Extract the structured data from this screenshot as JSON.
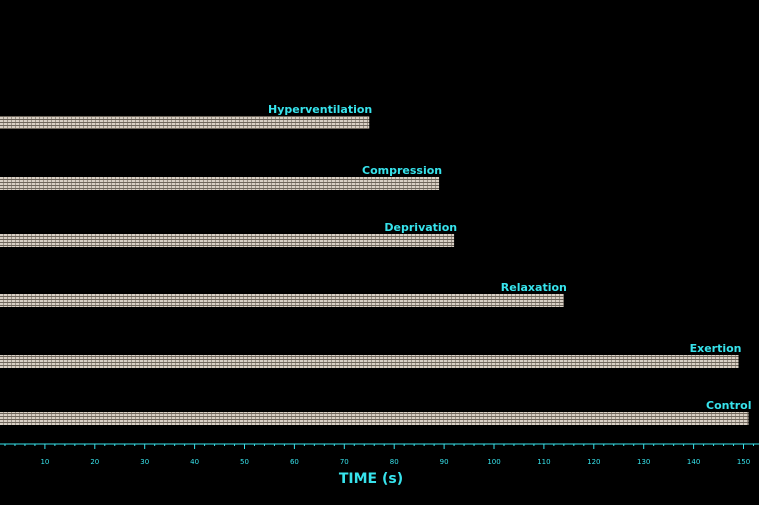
{
  "chart_data": {
    "type": "bar",
    "orientation": "horizontal",
    "categories": [
      "Hyperventilation",
      "Compression",
      "Deprivation",
      "Relaxation",
      "Exertion",
      "Control"
    ],
    "values": [
      75,
      89,
      92,
      114,
      149,
      151
    ],
    "xlabel": "TIME (s)",
    "xlim": [
      0,
      152
    ],
    "xticks": [
      10,
      20,
      30,
      40,
      50,
      60,
      70,
      80,
      90,
      100,
      110,
      120,
      130,
      140,
      150
    ],
    "grid": false,
    "legend": "none",
    "colors": {
      "background": "#000000",
      "bar": "#d8cfc4",
      "bar_stripe": "#6e665c",
      "text": "#37e3ec",
      "axis": "#37e3ec"
    }
  }
}
